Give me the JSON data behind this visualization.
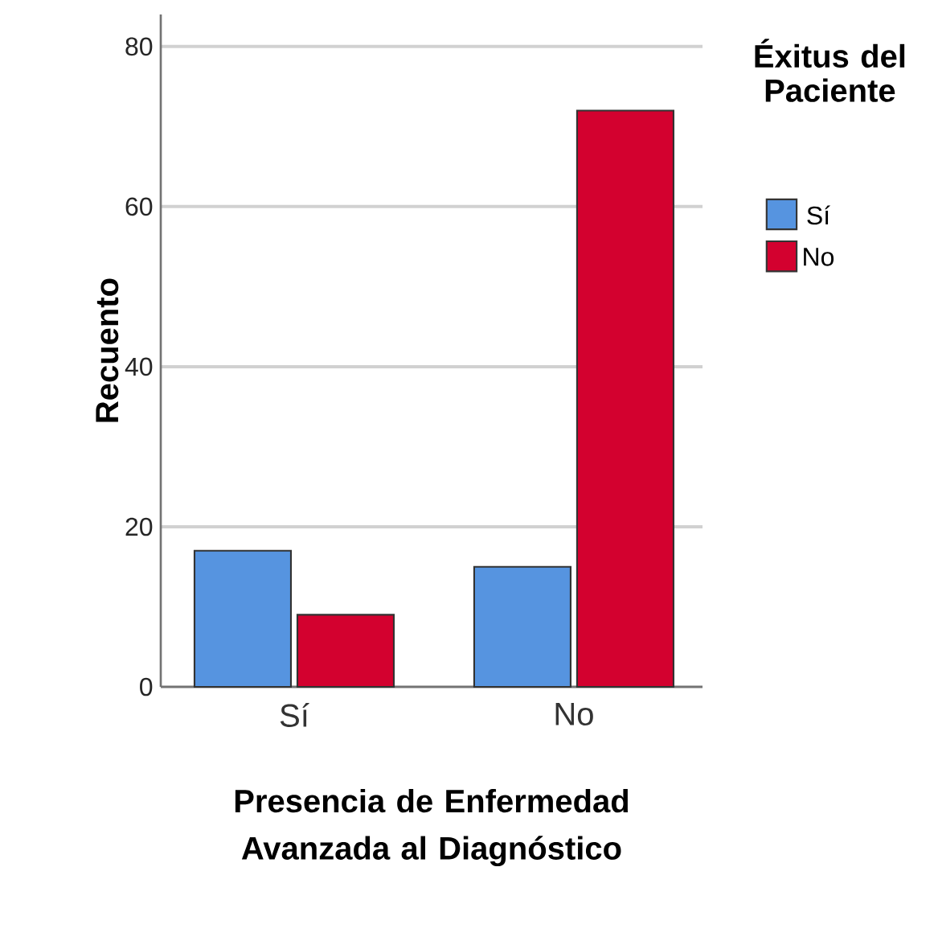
{
  "chart_data": {
    "type": "bar",
    "categories": [
      "Sí",
      "No"
    ],
    "xlabel": "Presencia de Enfermedad Avanzada al Diagnóstico",
    "ylabel": "Recuento",
    "legend_title": "Éxitus del Paciente",
    "legend": "top right",
    "grid": "y",
    "ylim": [
      0,
      84
    ],
    "yticks": [
      0,
      20,
      40,
      60,
      80
    ],
    "series": [
      {
        "name": "Sí",
        "color": "#5694e0",
        "values": [
          17,
          15
        ]
      },
      {
        "name": "No",
        "color": "#d3012f",
        "values": [
          9,
          72
        ]
      }
    ]
  }
}
